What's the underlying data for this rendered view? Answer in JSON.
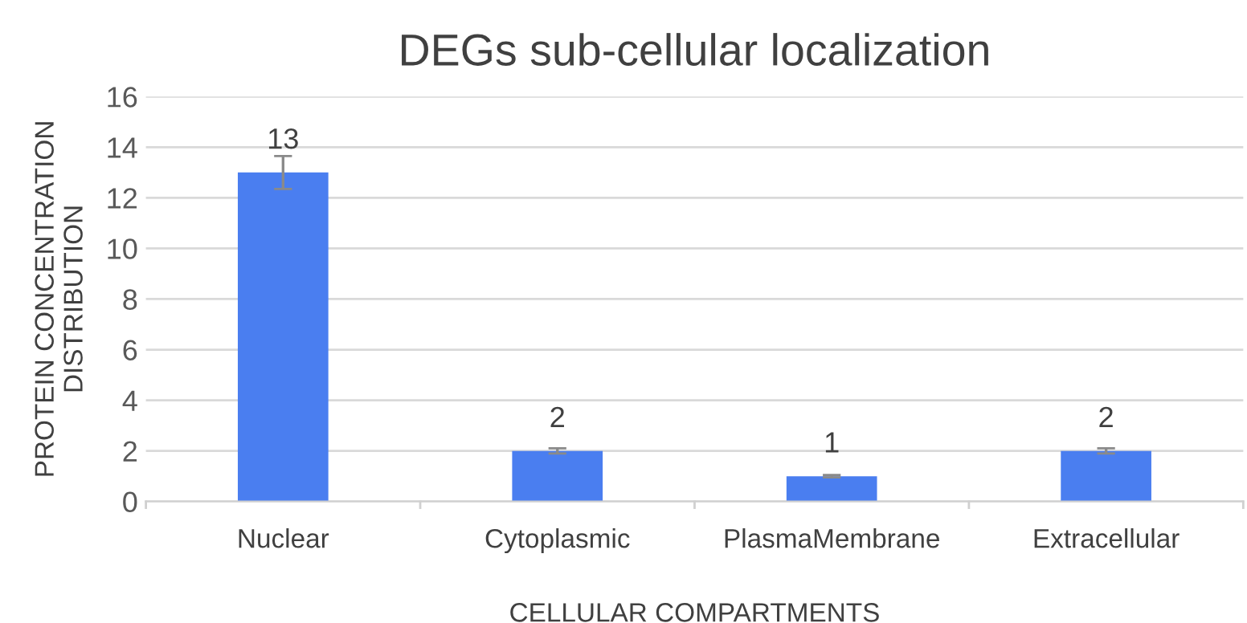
{
  "chart_data": {
    "type": "bar",
    "title": "DEGs sub-cellular localization",
    "xlabel": "CELLULAR COMPARTMENTS",
    "ylabel": "PROTEIN CONCENTRATION\nDISTRIBUTION",
    "categories": [
      "Nuclear",
      "Cytoplasmic",
      "PlasmaMembrane",
      "Extracellular"
    ],
    "values": [
      13,
      2,
      1,
      2
    ],
    "errors": [
      0.65,
      0.1,
      0.05,
      0.1
    ],
    "color": "#4a7ef0",
    "ylim": [
      0,
      16
    ],
    "yticks": [
      0,
      2,
      4,
      6,
      8,
      10,
      12,
      14,
      16
    ],
    "grid": "y",
    "data_labels": true
  }
}
